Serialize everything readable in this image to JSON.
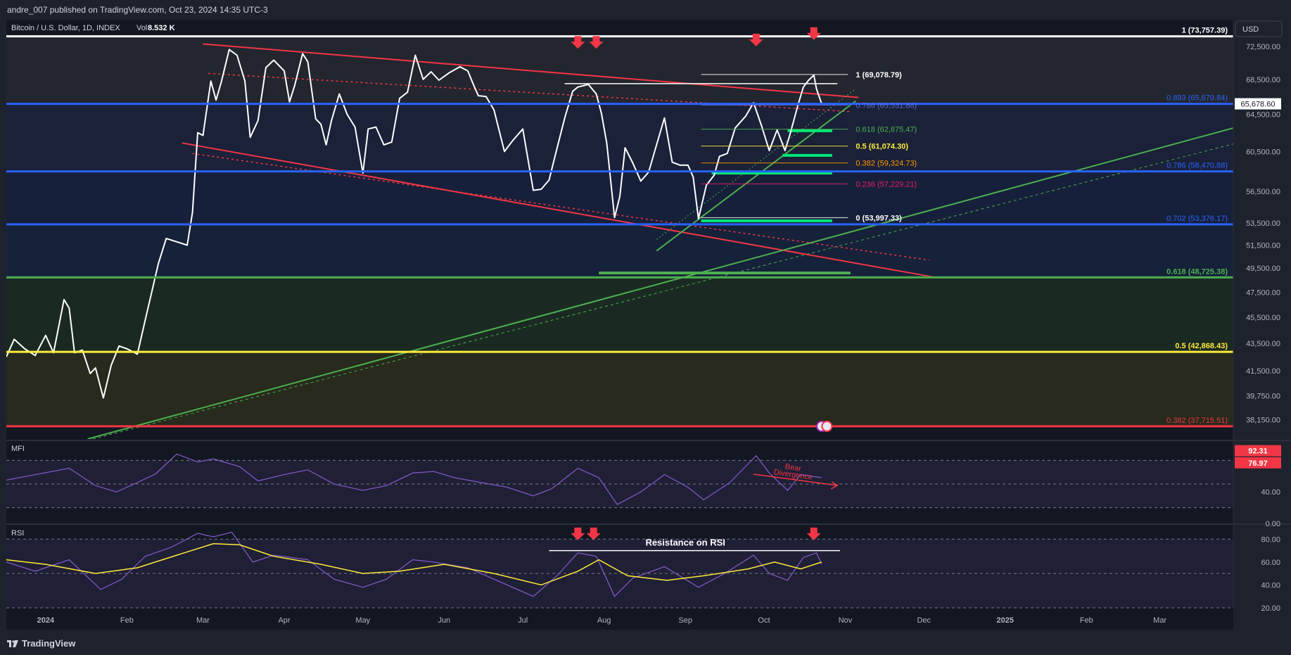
{
  "header": {
    "publisher_line": "andre_007 published on TradingView.com, Oct 23, 2024 14:35 UTC-3",
    "symbol_line": "Bitcoin / U.S. Dollar, 1D, INDEX",
    "volume_label": "Vol",
    "volume_value": "8.532 K",
    "currency_button": "USD"
  },
  "footer": {
    "brand": "TradingView"
  },
  "chart_data": {
    "type": "line",
    "title": "Bitcoin / U.S. Dollar, 1D, INDEX",
    "x_tick_labels": [
      "2024",
      "Feb",
      "Mar",
      "Apr",
      "May",
      "Jun",
      "Jul",
      "Aug",
      "Sep",
      "Oct",
      "Nov",
      "Dec",
      "2025",
      "Feb",
      "Mar"
    ],
    "x_ticks": [
      "2024-01-01",
      "2024-02-01",
      "2024-03-01",
      "2024-04-01",
      "2024-05-01",
      "2024-06-01",
      "2024-07-01",
      "2024-08-01",
      "2024-09-01",
      "2024-10-01",
      "2024-11-01",
      "2024-12-01",
      "2025-01-01",
      "2025-02-01",
      "2025-03-01"
    ],
    "x_range": [
      "2023-12-17",
      "2025-03-29"
    ],
    "y_scale": "log",
    "y_range": [
      36900,
      75900
    ],
    "y_tick_labels": [
      "72,500.00",
      "68,500.00",
      "64,500.00",
      "60,500.00",
      "56,500.00",
      "53,500.00",
      "51,500.00",
      "49,500.00",
      "47,500.00",
      "45,500.00",
      "43,500.00",
      "41,500.00",
      "39,750.00",
      "38,150.00"
    ],
    "y_ticks": [
      72500,
      68500,
      64500,
      60500,
      56500,
      53500,
      51500,
      49500,
      47500,
      45500,
      43500,
      41500,
      39750,
      38150
    ],
    "last_price_label": "65,678.60",
    "last_price": 65678.6,
    "series": [
      {
        "name": "BTCUSD",
        "color": "#ffffff",
        "points": [
          [
            "2023-12-17",
            42500
          ],
          [
            "2023-12-20",
            43800
          ],
          [
            "2023-12-24",
            43100
          ],
          [
            "2023-12-28",
            42600
          ],
          [
            "2024-01-01",
            44100
          ],
          [
            "2024-01-04",
            42800
          ],
          [
            "2024-01-08",
            46900
          ],
          [
            "2024-01-10",
            46200
          ],
          [
            "2024-01-12",
            42800
          ],
          [
            "2024-01-15",
            43000
          ],
          [
            "2024-01-18",
            41300
          ],
          [
            "2024-01-20",
            41700
          ],
          [
            "2024-01-23",
            39600
          ],
          [
            "2024-01-26",
            41900
          ],
          [
            "2024-01-29",
            43300
          ],
          [
            "2024-02-01",
            43100
          ],
          [
            "2024-02-05",
            42700
          ],
          [
            "2024-02-08",
            45300
          ],
          [
            "2024-02-10",
            47100
          ],
          [
            "2024-02-13",
            49900
          ],
          [
            "2024-02-16",
            52100
          ],
          [
            "2024-02-20",
            51800
          ],
          [
            "2024-02-24",
            51500
          ],
          [
            "2024-02-26",
            54500
          ],
          [
            "2024-02-28",
            62500
          ],
          [
            "2024-03-01",
            62200
          ],
          [
            "2024-03-04",
            68300
          ],
          [
            "2024-03-06",
            66100
          ],
          [
            "2024-03-08",
            68200
          ],
          [
            "2024-03-11",
            72100
          ],
          [
            "2024-03-14",
            71400
          ],
          [
            "2024-03-17",
            68300
          ],
          [
            "2024-03-19",
            62000
          ],
          [
            "2024-03-22",
            63800
          ],
          [
            "2024-03-25",
            69900
          ],
          [
            "2024-03-28",
            70800
          ],
          [
            "2024-04-01",
            69500
          ],
          [
            "2024-04-03",
            65900
          ],
          [
            "2024-04-05",
            67800
          ],
          [
            "2024-04-08",
            71600
          ],
          [
            "2024-04-10",
            70600
          ],
          [
            "2024-04-13",
            64000
          ],
          [
            "2024-04-15",
            63400
          ],
          [
            "2024-04-17",
            61200
          ],
          [
            "2024-04-19",
            63800
          ],
          [
            "2024-04-22",
            66800
          ],
          [
            "2024-04-25",
            64500
          ],
          [
            "2024-04-28",
            63100
          ],
          [
            "2024-05-01",
            58300
          ],
          [
            "2024-05-03",
            62900
          ],
          [
            "2024-05-06",
            63100
          ],
          [
            "2024-05-09",
            61200
          ],
          [
            "2024-05-12",
            61500
          ],
          [
            "2024-05-15",
            66300
          ],
          [
            "2024-05-18",
            67000
          ],
          [
            "2024-05-21",
            71400
          ],
          [
            "2024-05-24",
            68500
          ],
          [
            "2024-05-27",
            69400
          ],
          [
            "2024-05-30",
            68400
          ],
          [
            "2024-06-03",
            69300
          ],
          [
            "2024-06-07",
            70000
          ],
          [
            "2024-06-10",
            69500
          ],
          [
            "2024-06-12",
            68000
          ],
          [
            "2024-06-14",
            66600
          ],
          [
            "2024-06-17",
            66500
          ],
          [
            "2024-06-20",
            65000
          ],
          [
            "2024-06-24",
            60500
          ],
          [
            "2024-06-27",
            61600
          ],
          [
            "2024-07-01",
            62900
          ],
          [
            "2024-07-05",
            56600
          ],
          [
            "2024-07-08",
            56700
          ],
          [
            "2024-07-11",
            57600
          ],
          [
            "2024-07-14",
            60800
          ],
          [
            "2024-07-17",
            64100
          ],
          [
            "2024-07-20",
            67100
          ],
          [
            "2024-07-22",
            67600
          ],
          [
            "2024-07-26",
            67900
          ],
          [
            "2024-07-29",
            66800
          ],
          [
            "2024-07-31",
            64600
          ],
          [
            "2024-08-02",
            61400
          ],
          [
            "2024-08-05",
            54000
          ],
          [
            "2024-08-07",
            56000
          ],
          [
            "2024-08-09",
            60900
          ],
          [
            "2024-08-12",
            59300
          ],
          [
            "2024-08-15",
            57500
          ],
          [
            "2024-08-18",
            58400
          ],
          [
            "2024-08-21",
            61200
          ],
          [
            "2024-08-24",
            64100
          ],
          [
            "2024-08-27",
            59400
          ],
          [
            "2024-08-30",
            59100
          ],
          [
            "2024-09-02",
            59100
          ],
          [
            "2024-09-04",
            57900
          ],
          [
            "2024-09-06",
            53900
          ],
          [
            "2024-09-09",
            57100
          ],
          [
            "2024-09-12",
            58100
          ],
          [
            "2024-09-14",
            60000
          ],
          [
            "2024-09-17",
            60300
          ],
          [
            "2024-09-20",
            63000
          ],
          [
            "2024-09-24",
            64300
          ],
          [
            "2024-09-27",
            65800
          ],
          [
            "2024-09-30",
            63300
          ],
          [
            "2024-10-03",
            60600
          ],
          [
            "2024-10-06",
            62800
          ],
          [
            "2024-10-09",
            60600
          ],
          [
            "2024-10-11",
            62400
          ],
          [
            "2024-10-14",
            65600
          ],
          [
            "2024-10-16",
            67600
          ],
          [
            "2024-10-18",
            68400
          ],
          [
            "2024-10-20",
            69000
          ],
          [
            "2024-10-21",
            67400
          ],
          [
            "2024-10-23",
            65678.6
          ]
        ]
      }
    ],
    "fib_levels_right": [
      {
        "label": "1 (73,757.39)",
        "price": 73757.39,
        "color": "#ffffff"
      },
      {
        "label": "0.893 (65,670.84)",
        "price": 65670.84,
        "color": "#2962ff"
      },
      {
        "label": "0.786 (58,470.88)",
        "price": 58470.88,
        "color": "#2962ff"
      },
      {
        "label": "0.702 (53,376.17)",
        "price": 53376.17,
        "color": "#2962ff"
      },
      {
        "label": "0.618 (48,725.38)",
        "price": 48725.38,
        "color": "#4caf50"
      },
      {
        "label": "0.5 (42,868.43)",
        "price": 42868.43,
        "color": "#ffeb3b"
      },
      {
        "label": "0.382 (37,715.51)",
        "price": 37715.51,
        "color": "#f23645"
      }
    ],
    "fib_levels_local": [
      {
        "label": "1 (69,078.79)",
        "price": 69078.79,
        "color": "#ffffff"
      },
      {
        "label": "0.786 (65,531.88)",
        "price": 65531.88,
        "color": "#5b6fd6"
      },
      {
        "label": "0.618 (62,875.47)",
        "price": 62875.47,
        "color": "#4caf50"
      },
      {
        "label": "0.5 (61,074.30)",
        "price": 61074.3,
        "color": "#ffeb3b"
      },
      {
        "label": "0.382 (59,324.73)",
        "price": 59324.73,
        "color": "#ff9800"
      },
      {
        "label": "0.236 (57,229.21)",
        "price": 57229.21,
        "color": "#e91e63"
      },
      {
        "label": "0 (53,997.33)",
        "price": 53997.33,
        "color": "#ffffff"
      }
    ],
    "mfi": {
      "title": "MFI",
      "y_range": [
        0,
        100
      ],
      "y_tick_labels": [
        "40.00",
        "0.00"
      ],
      "y_ticks": [
        40,
        0
      ],
      "value_labels": [
        "92.31",
        "76.97"
      ],
      "values": [
        92.31,
        76.97
      ],
      "annotation": "Bear\nDivergence",
      "color": "#7e57c2",
      "points": [
        [
          "2023-12-17",
          55
        ],
        [
          "2023-12-28",
          62
        ],
        [
          "2024-01-10",
          70
        ],
        [
          "2024-01-20",
          48
        ],
        [
          "2024-01-28",
          40
        ],
        [
          "2024-02-05",
          52
        ],
        [
          "2024-02-12",
          63
        ],
        [
          "2024-02-20",
          88
        ],
        [
          "2024-02-28",
          78
        ],
        [
          "2024-03-05",
          82
        ],
        [
          "2024-03-15",
          72
        ],
        [
          "2024-03-22",
          54
        ],
        [
          "2024-04-01",
          62
        ],
        [
          "2024-04-10",
          68
        ],
        [
          "2024-04-20",
          50
        ],
        [
          "2024-05-01",
          42
        ],
        [
          "2024-05-10",
          48
        ],
        [
          "2024-05-20",
          64
        ],
        [
          "2024-05-28",
          66
        ],
        [
          "2024-06-05",
          58
        ],
        [
          "2024-06-15",
          52
        ],
        [
          "2024-06-25",
          46
        ],
        [
          "2024-07-05",
          35
        ],
        [
          "2024-07-12",
          44
        ],
        [
          "2024-07-22",
          70
        ],
        [
          "2024-07-30",
          58
        ],
        [
          "2024-08-06",
          24
        ],
        [
          "2024-08-15",
          40
        ],
        [
          "2024-08-24",
          62
        ],
        [
          "2024-09-02",
          46
        ],
        [
          "2024-09-08",
          30
        ],
        [
          "2024-09-18",
          52
        ],
        [
          "2024-09-28",
          86
        ],
        [
          "2024-10-03",
          64
        ],
        [
          "2024-10-10",
          42
        ],
        [
          "2024-10-15",
          62
        ],
        [
          "2024-10-23",
          58
        ]
      ]
    },
    "rsi": {
      "title": "RSI",
      "y_range": [
        20,
        90
      ],
      "y_tick_labels": [
        "80.00",
        "60.00",
        "40.00",
        "20.00"
      ],
      "y_ticks": [
        80,
        60,
        40,
        20
      ],
      "annotation": "Resistance on RSI",
      "color": "#7e57c2",
      "ma_color": "#ffeb3b",
      "points": [
        [
          "2023-12-17",
          60
        ],
        [
          "2023-12-28",
          52
        ],
        [
          "2024-01-10",
          62
        ],
        [
          "2024-01-22",
          36
        ],
        [
          "2024-01-30",
          45
        ],
        [
          "2024-02-08",
          65
        ],
        [
          "2024-02-18",
          73
        ],
        [
          "2024-02-28",
          85
        ],
        [
          "2024-03-05",
          82
        ],
        [
          "2024-03-12",
          86
        ],
        [
          "2024-03-20",
          60
        ],
        [
          "2024-03-28",
          66
        ],
        [
          "2024-04-10",
          62
        ],
        [
          "2024-04-20",
          45
        ],
        [
          "2024-05-01",
          38
        ],
        [
          "2024-05-10",
          45
        ],
        [
          "2024-05-20",
          62
        ],
        [
          "2024-05-28",
          60
        ],
        [
          "2024-06-10",
          55
        ],
        [
          "2024-06-25",
          40
        ],
        [
          "2024-07-05",
          30
        ],
        [
          "2024-07-14",
          48
        ],
        [
          "2024-07-22",
          68
        ],
        [
          "2024-07-29",
          65
        ],
        [
          "2024-08-05",
          30
        ],
        [
          "2024-08-12",
          46
        ],
        [
          "2024-08-24",
          56
        ],
        [
          "2024-09-06",
          38
        ],
        [
          "2024-09-16",
          50
        ],
        [
          "2024-09-27",
          66
        ],
        [
          "2024-10-03",
          50
        ],
        [
          "2024-10-10",
          44
        ],
        [
          "2024-10-16",
          64
        ],
        [
          "2024-10-21",
          68
        ],
        [
          "2024-10-23",
          58
        ]
      ],
      "ma_points": [
        [
          "2023-12-17",
          62
        ],
        [
          "2024-01-01",
          58
        ],
        [
          "2024-01-20",
          50
        ],
        [
          "2024-02-05",
          55
        ],
        [
          "2024-02-20",
          66
        ],
        [
          "2024-03-05",
          76
        ],
        [
          "2024-03-15",
          75
        ],
        [
          "2024-03-28",
          65
        ],
        [
          "2024-04-15",
          58
        ],
        [
          "2024-05-01",
          50
        ],
        [
          "2024-05-15",
          52
        ],
        [
          "2024-06-01",
          58
        ],
        [
          "2024-06-20",
          50
        ],
        [
          "2024-07-08",
          40
        ],
        [
          "2024-07-22",
          52
        ],
        [
          "2024-07-30",
          62
        ],
        [
          "2024-08-10",
          48
        ],
        [
          "2024-08-25",
          44
        ],
        [
          "2024-09-08",
          48
        ],
        [
          "2024-09-25",
          54
        ],
        [
          "2024-10-05",
          60
        ],
        [
          "2024-10-15",
          54
        ],
        [
          "2024-10-23",
          60
        ]
      ]
    }
  }
}
